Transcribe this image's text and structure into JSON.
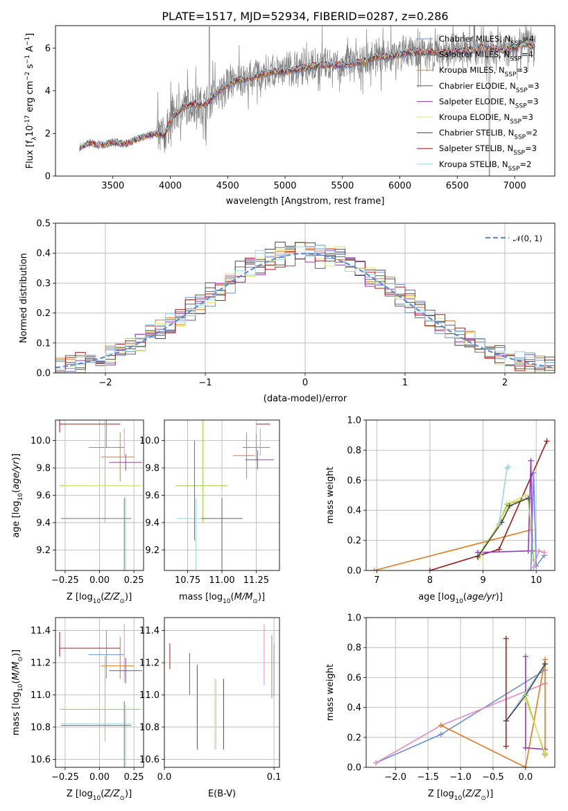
{
  "title": "PLATE=1517, MJD=52934, FIBERID=0287, z=0.286",
  "colors": [
    "#6a8fd8",
    "#6e6e6e",
    "#e07b20",
    "#5d5d5d",
    "#9a35c2",
    "#e2e070",
    "#474747",
    "#b01818",
    "#99d6e3",
    "#9acd32",
    "#e88bc0",
    "#9e1b1b"
  ],
  "chart_data": [
    {
      "id": "spectrum",
      "type": "line",
      "xlabel": "wavelength [Angstrom, rest frame]",
      "ylabel": "Flux [f",
      "ylabel_rest": "10",
      "ylabel_exp": "-17",
      "ylabel_units": " erg cm",
      "xlim": [
        3000,
        7350
      ],
      "ylim": [
        0,
        7.05
      ],
      "xticks": [
        3500,
        4000,
        4500,
        5000,
        5500,
        6000,
        6500,
        7000
      ],
      "yticks": [
        0,
        2,
        4,
        6
      ],
      "legend_position": "top-right",
      "legend": [
        {
          "label": "Chabrier MILES, N",
          "n": "4",
          "color": "#6a8fd8"
        },
        {
          "label": "Salpeter MILES, N",
          "n": "4",
          "color": "#6e6e6e"
        },
        {
          "label": "Kroupa MILES, N",
          "n": "3",
          "color": "#e07b20"
        },
        {
          "label": "Chabrier ELODIE, N",
          "n": "3",
          "color": "#5d5d5d"
        },
        {
          "label": "Salpeter ELODIE, N",
          "n": "3",
          "color": "#9a35c2"
        },
        {
          "label": "Kroupa ELODIE, N",
          "n": "3",
          "color": "#e2e070"
        },
        {
          "label": "Chabrier STELIB, N",
          "n": "2",
          "color": "#474747"
        },
        {
          "label": "Salpeter STELIB, N",
          "n": "3",
          "color": "#b01818"
        },
        {
          "label": "Kroupa STELIB, N",
          "n": "2",
          "color": "#99d6e3"
        }
      ],
      "legend_sub": "SSP",
      "continuum_x": [
        3210,
        3300,
        3400,
        3500,
        3600,
        3700,
        3800,
        3880,
        3950,
        4000,
        4100,
        4200,
        4300,
        4400,
        4500,
        4600,
        4700,
        4800,
        4900,
        5000,
        5100,
        5200,
        5300,
        5400,
        5500,
        5600,
        5700,
        5800,
        5900,
        6000,
        6100,
        6200,
        6300,
        6400,
        6500,
        6600,
        6700,
        6800,
        6900,
        7000,
        7100,
        7180
      ],
      "continuum_y": [
        1.35,
        1.55,
        1.45,
        1.6,
        1.5,
        1.7,
        1.9,
        2.0,
        1.9,
        2.6,
        3.2,
        3.4,
        3.3,
        3.9,
        4.3,
        4.5,
        4.6,
        4.8,
        4.9,
        4.9,
        5.0,
        5.1,
        5.2,
        5.2,
        5.2,
        5.3,
        5.4,
        5.6,
        5.6,
        5.7,
        5.8,
        5.8,
        5.8,
        5.8,
        5.9,
        5.9,
        6.0,
        6.0,
        5.9,
        6.0,
        6.2,
        6.1
      ]
    },
    {
      "id": "residuals",
      "type": "line",
      "xlabel": "(data-model)/error",
      "ylabel": "Normed distribution",
      "xlim": [
        -2.5,
        2.5
      ],
      "ylim": [
        0,
        0.5
      ],
      "xticks": [
        -2,
        -1,
        0,
        1,
        2
      ],
      "yticks": [
        0.0,
        0.1,
        0.2,
        0.3,
        0.4,
        0.5
      ],
      "grid": true,
      "legend": [
        {
          "label": "𝒩(0, 1)",
          "color": "#5b8bd5"
        }
      ],
      "legend_position": "top-right",
      "bin_width": 0.1
    },
    {
      "id": "age_vs_Z",
      "type": "scatter",
      "xlabel": "Z [log",
      "ylabel": "age  [log",
      "xlim": [
        -0.32,
        0.32
      ],
      "ylim": [
        9.05,
        10.15
      ],
      "xticks": [
        -0.25,
        0.0,
        0.25
      ],
      "yticks": [
        9.2,
        9.4,
        9.6,
        9.8,
        10.0
      ],
      "grid": true,
      "points": [
        {
          "x": -0.29,
          "y": 10.12,
          "xe": 0.0,
          "xe2": 0.44,
          "ye": 0.04,
          "ye2": 0.0,
          "color": "#b01818"
        },
        {
          "x": 0.05,
          "y": 9.95,
          "xe": 0.13,
          "xe2": 0.13,
          "ye": 0.3,
          "ye2": 0.0,
          "color": "#6a8fd8"
        },
        {
          "x": 0.18,
          "y": 9.99,
          "xe": 0.0,
          "xe2": 0.0,
          "ye": 0.1,
          "ye2": 0.1,
          "color": "#e88bc0"
        },
        {
          "x": 0.15,
          "y": 9.88,
          "xe": 0.14,
          "xe2": 0.1,
          "ye": 0.18,
          "ye2": 0.18,
          "color": "#e07b20"
        },
        {
          "x": 0.19,
          "y": 9.84,
          "xe": 0.12,
          "xe2": 0.12,
          "ye": 0.06,
          "ye2": 0.06,
          "color": "#9a35c2"
        },
        {
          "x": 0.04,
          "y": 9.67,
          "xe": 0.33,
          "xe2": 0.26,
          "ye": 0.57,
          "ye2": 0.27,
          "color": "#9acd32"
        },
        {
          "x": 0.04,
          "y": 9.67,
          "xe": 0.3,
          "xe2": 0.26,
          "ye": 0.0,
          "ye2": 0.0,
          "color": "#e2e070"
        },
        {
          "x": 0.19,
          "y": 9.43,
          "xe": 0.47,
          "xe2": 0.04,
          "ye": 0.16,
          "ye2": 0.5,
          "color": "#99d6e3"
        },
        {
          "x": 0.18,
          "y": 9.43,
          "xe": 0.46,
          "xe2": 0.05,
          "ye": 0.15,
          "ye2": 0.45,
          "color": "#6e6e6e"
        }
      ]
    },
    {
      "id": "age_vs_mass",
      "type": "scatter",
      "xlabel": "mass [log",
      "ylabel": "",
      "xlim": [
        10.58,
        11.42
      ],
      "ylim": [
        9.05,
        10.15
      ],
      "xticks": [
        10.75,
        11.0,
        11.25
      ],
      "yticks": [
        9.2,
        9.4,
        9.6,
        9.8,
        10.0
      ],
      "grid": true,
      "points": [
        {
          "x": 11.3,
          "y": 10.12,
          "xe": 0.05,
          "xe2": 0.05,
          "ye": 0.0,
          "ye2": 0.0,
          "color": "#b01818"
        },
        {
          "x": 11.25,
          "y": 9.95,
          "xe": 0.1,
          "xe2": 0.1,
          "ye": 0.1,
          "ye2": 0.1,
          "color": "#6a8fd8"
        },
        {
          "x": 11.28,
          "y": 9.99,
          "xe": 0.0,
          "xe2": 0.0,
          "ye": 0.1,
          "ye2": 0.1,
          "color": "#e88bc0"
        },
        {
          "x": 11.18,
          "y": 9.89,
          "xe": 0.1,
          "xe2": 0.06,
          "ye": 0.17,
          "ye2": 0.17,
          "color": "#e07b20"
        },
        {
          "x": 11.26,
          "y": 9.86,
          "xe": 0.09,
          "xe2": 0.12,
          "ye": 0.07,
          "ye2": 0.07,
          "color": "#9a35c2"
        },
        {
          "x": 10.86,
          "y": 9.67,
          "xe": 0.2,
          "xe2": 0.18,
          "ye": 0.57,
          "ye2": 0.27,
          "color": "#9acd32"
        },
        {
          "x": 10.81,
          "y": 9.43,
          "xe": 0.14,
          "xe2": 0.1,
          "ye": 0.15,
          "ye2": 0.5,
          "color": "#99d6e3"
        },
        {
          "x": 11.0,
          "y": 9.43,
          "xe": 0.15,
          "xe2": 0.15,
          "ye": 0.15,
          "ye2": 0.45,
          "color": "#5d5d5d"
        },
        {
          "x": 10.8,
          "y": 9.6,
          "xe": 0.0,
          "xe2": 0.0,
          "ye": 0.4,
          "ye2": 0.33,
          "color": "#6e6e6e"
        }
      ]
    },
    {
      "id": "weight_vs_age",
      "type": "line",
      "xlabel": "age  [log",
      "ylabel": "mass weight",
      "xlim": [
        6.8,
        10.35
      ],
      "ylim": [
        0,
        1.0
      ],
      "xticks": [
        7,
        8,
        9,
        10
      ],
      "yticks": [
        0.0,
        0.2,
        0.4,
        0.6,
        0.8,
        1.0
      ],
      "grid": true,
      "series": [
        {
          "color": "#e07b20",
          "x": [
            6.95,
            9.9
          ],
          "y": [
            0.0,
            0.27
          ]
        },
        {
          "color": "#9e1b1b",
          "x": [
            8.0,
            9.3,
            10.2
          ],
          "y": [
            0.0,
            0.14,
            0.86
          ]
        },
        {
          "color": "#9a35c2",
          "x": [
            8.9,
            9.85,
            9.9,
            9.93
          ],
          "y": [
            0.12,
            0.13,
            0.73,
            0.13
          ]
        },
        {
          "color": "#9acd32",
          "x": [
            8.9,
            9.3,
            9.45,
            9.85,
            9.95
          ],
          "y": [
            0.09,
            0.31,
            0.44,
            0.48,
            0.07
          ]
        },
        {
          "color": "#e2e070",
          "x": [
            8.92,
            9.35,
            9.5,
            9.8
          ],
          "y": [
            0.08,
            0.35,
            0.45,
            0.5
          ]
        },
        {
          "color": "#474747",
          "x": [
            8.9,
            9.35,
            9.5,
            9.85
          ],
          "y": [
            0.09,
            0.32,
            0.43,
            0.48
          ]
        },
        {
          "color": "#99d6e3",
          "x": [
            9.3,
            9.45,
            9.48
          ],
          "y": [
            0.31,
            0.68,
            0.69
          ]
        },
        {
          "color": "#6a8fd8",
          "x": [
            9.9,
            9.95,
            10.0,
            10.15
          ],
          "y": [
            0.0,
            0.65,
            0.03,
            0.1
          ]
        },
        {
          "color": "#e88bc0",
          "x": [
            9.95,
            10.05,
            10.15
          ],
          "y": [
            0.02,
            0.13,
            0.12
          ]
        }
      ]
    },
    {
      "id": "mass_vs_Z",
      "type": "scatter",
      "xlabel": "Z [log",
      "ylabel": "mass [log",
      "xlim": [
        -0.32,
        0.32
      ],
      "ylim": [
        10.55,
        11.48
      ],
      "xticks": [
        -0.25,
        0.0,
        0.25
      ],
      "yticks": [
        10.6,
        10.8,
        11.0,
        11.2,
        11.4
      ],
      "grid": true,
      "points": [
        {
          "x": -0.29,
          "y": 11.29,
          "xe": 0.0,
          "xe2": 0.44,
          "ye": 0.1,
          "ye2": 0.05,
          "color": "#b01818"
        },
        {
          "x": 0.05,
          "y": 11.25,
          "xe": 0.13,
          "xe2": 0.13,
          "ye": 0.15,
          "ye2": 0.15,
          "color": "#6a8fd8"
        },
        {
          "x": 0.18,
          "y": 11.26,
          "xe": 0.0,
          "xe2": 0.0,
          "ye": 0.18,
          "ye2": 0.18,
          "color": "#e88bc0"
        },
        {
          "x": 0.15,
          "y": 11.18,
          "xe": 0.14,
          "xe2": 0.1,
          "ye": 0.18,
          "ye2": 0.08,
          "color": "#e07b20"
        },
        {
          "x": 0.19,
          "y": 11.15,
          "xe": 0.12,
          "xe2": 0.12,
          "ye": 0.08,
          "ye2": 0.08,
          "color": "#9a35c2"
        },
        {
          "x": 0.04,
          "y": 10.91,
          "xe": 0.33,
          "xe2": 0.26,
          "ye": 0.33,
          "ye2": 0.2,
          "color": "#9acd32"
        },
        {
          "x": 0.19,
          "y": 10.82,
          "xe": 0.47,
          "xe2": 0.04,
          "ye": 0.12,
          "ye2": 0.55,
          "color": "#99d6e3"
        },
        {
          "x": 0.18,
          "y": 10.81,
          "xe": 0.46,
          "xe2": 0.05,
          "ye": 0.15,
          "ye2": 0.5,
          "color": "#6e6e6e"
        }
      ]
    },
    {
      "id": "mass_vs_EBV",
      "type": "scatter",
      "xlabel": "E(B-V)",
      "ylabel": "",
      "xlim": [
        0.0,
        0.105
      ],
      "ylim": [
        10.55,
        11.48
      ],
      "xticks": [
        0.0,
        0.1
      ],
      "yticks": [
        10.6,
        10.8,
        11.0,
        11.2,
        11.4
      ],
      "grid": true,
      "points": [
        {
          "x": 0.005,
          "y": 11.25,
          "ye": 0.07,
          "ye2": 0.09,
          "color": "#b01818"
        },
        {
          "x": 0.023,
          "y": 11.13,
          "ye": 0.13,
          "ye2": 0.13,
          "color": "#9a35c2"
        },
        {
          "x": 0.03,
          "y": 10.92,
          "ye": 0.27,
          "ye2": 0.25,
          "color": "#6a8fd8"
        },
        {
          "x": 0.03,
          "y": 10.92,
          "ye": 0.26,
          "ye2": 0.26,
          "color": "#5d5d5d"
        },
        {
          "x": 0.046,
          "y": 10.88,
          "ye": 0.22,
          "ye2": 0.22,
          "color": "#e2e070"
        },
        {
          "x": 0.047,
          "y": 10.88,
          "ye": 0.22,
          "ye2": 0.22,
          "color": "#99d6e3"
        },
        {
          "x": 0.054,
          "y": 10.88,
          "ye": 0.22,
          "ye2": 0.22,
          "color": "#474747"
        },
        {
          "x": 0.091,
          "y": 11.25,
          "ye": 0.19,
          "ye2": 0.19,
          "color": "#e88bc0"
        },
        {
          "x": 0.098,
          "y": 11.17,
          "ye": 0.2,
          "ye2": 0.19,
          "color": "#6a8fd8"
        },
        {
          "x": 0.1,
          "y": 11.15,
          "ye": 0.17,
          "ye2": 0.16,
          "color": "#e07b20"
        }
      ]
    },
    {
      "id": "weight_vs_Z",
      "type": "line",
      "xlabel": "Z [log",
      "ylabel": "mass weight",
      "xlim": [
        -2.45,
        0.45
      ],
      "ylim": [
        0,
        1.0
      ],
      "xticks": [
        -2.0,
        -1.5,
        -1.0,
        -0.5,
        0.0
      ],
      "yticks": [
        0.0,
        0.2,
        0.4,
        0.6,
        0.8,
        1.0
      ],
      "grid": true,
      "series": [
        {
          "color": "#6a8fd8",
          "x": [
            -2.3,
            -1.3,
            0.3
          ],
          "y": [
            0.03,
            0.22,
            0.65
          ]
        },
        {
          "color": "#e88bc0",
          "x": [
            -2.3,
            -1.3,
            0.3
          ],
          "y": [
            0.03,
            0.28,
            0.56
          ]
        },
        {
          "color": "#e07b20",
          "x": [
            -1.3,
            0.0,
            0.3,
            0.3
          ],
          "y": [
            0.28,
            0.0,
            0.72,
            0.09
          ]
        },
        {
          "color": "#9e1b1b",
          "x": [
            -0.3,
            -0.3
          ],
          "y": [
            0.14,
            0.86
          ]
        },
        {
          "color": "#9a35c2",
          "x": [
            0.0,
            0.0,
            0.3
          ],
          "y": [
            0.74,
            0.13,
            0.12
          ]
        },
        {
          "color": "#99d6e3",
          "x": [
            -0.3,
            0.3
          ],
          "y": [
            0.31,
            0.69
          ]
        },
        {
          "color": "#474747",
          "x": [
            -0.3,
            0.0,
            0.3
          ],
          "y": [
            0.31,
            0.48,
            0.69
          ]
        },
        {
          "color": "#9acd32",
          "x": [
            0.0,
            0.3
          ],
          "y": [
            0.48,
            0.08
          ]
        },
        {
          "color": "#e2e070",
          "x": [
            0.0,
            0.3
          ],
          "y": [
            0.45,
            0.1
          ]
        }
      ]
    }
  ]
}
